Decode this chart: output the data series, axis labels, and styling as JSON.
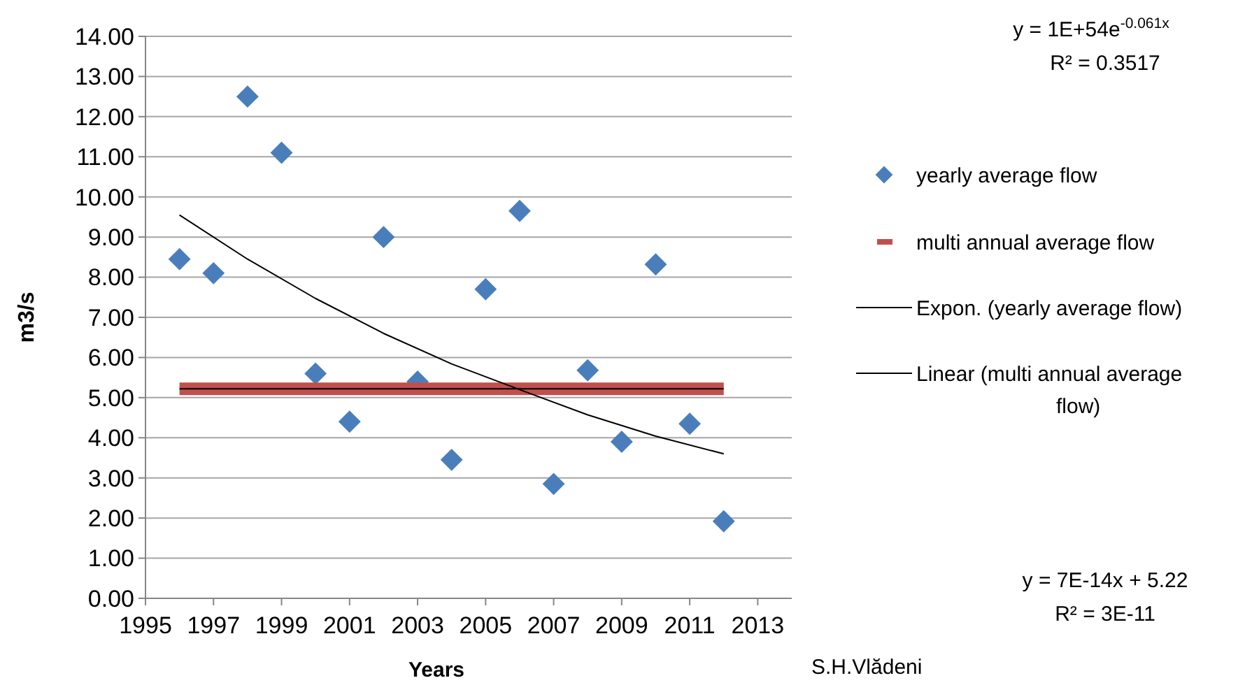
{
  "chart_data": {
    "type": "scatter",
    "xlabel": "Years",
    "ylabel": "m3/s",
    "x": [
      1996,
      1997,
      1998,
      1999,
      2000,
      2001,
      2002,
      2003,
      2004,
      2005,
      2006,
      2007,
      2008,
      2009,
      2010,
      2011,
      2012
    ],
    "series": [
      {
        "name": "yearly average flow",
        "color": "#4a7ebb",
        "marker": "diamond",
        "values": [
          8.45,
          8.1,
          12.5,
          11.1,
          5.6,
          4.4,
          9.0,
          5.4,
          3.45,
          7.7,
          9.65,
          2.85,
          5.68,
          3.9,
          8.32,
          4.35,
          1.92
        ]
      },
      {
        "name": "multi annual average flow",
        "type": "line",
        "color": "#c0504d",
        "values": [
          5.22,
          5.22,
          5.22,
          5.22,
          5.22,
          5.22,
          5.22,
          5.22,
          5.22,
          5.22,
          5.22,
          5.22,
          5.22,
          5.22,
          5.22,
          5.22,
          5.22
        ]
      },
      {
        "name": "Expon. (yearly average flow)",
        "type": "line",
        "color": "#000000",
        "x": [
          1996,
          1998,
          2000,
          2002,
          2004,
          2006,
          2008,
          2010,
          2012
        ],
        "values": [
          9.55,
          8.45,
          7.47,
          6.6,
          5.84,
          5.2,
          4.57,
          4.04,
          3.6
        ]
      },
      {
        "name": "Linear (multi annual average flow)",
        "type": "line",
        "color": "#000000",
        "x": [
          1996,
          2012
        ],
        "values": [
          5.22,
          5.22
        ]
      }
    ],
    "xlim": [
      1995,
      2014
    ],
    "xticks": [
      1995,
      1997,
      1999,
      2001,
      2003,
      2005,
      2007,
      2009,
      2011,
      2013
    ],
    "ylim": [
      0,
      14
    ],
    "yticks": [
      {
        "value": 0,
        "label": "0.00"
      },
      {
        "value": 1,
        "label": "1.00"
      },
      {
        "value": 2,
        "label": "2.00"
      },
      {
        "value": 3,
        "label": "3.00"
      },
      {
        "value": 4,
        "label": "4.00"
      },
      {
        "value": 5,
        "label": "5.00"
      },
      {
        "value": 6,
        "label": "6.00"
      },
      {
        "value": 7,
        "label": "7.00"
      },
      {
        "value": 8,
        "label": "8.00"
      },
      {
        "value": 9,
        "label": "9.00"
      },
      {
        "value": 10,
        "label": "10.00"
      },
      {
        "value": 11,
        "label": "11.00"
      },
      {
        "value": 12,
        "label": "12.00"
      },
      {
        "value": 13,
        "label": "13.00"
      },
      {
        "value": 14,
        "label": "14.00"
      }
    ],
    "grid": "y",
    "legend": "right",
    "line_style": "solid",
    "annotations": [
      "y = 1E+54e$^{-0.061x}$",
      "R² = 0.3517",
      "y = 7E-14x + 5.22",
      "R² = 3E-11",
      "S.H.Vlădeni"
    ]
  }
}
